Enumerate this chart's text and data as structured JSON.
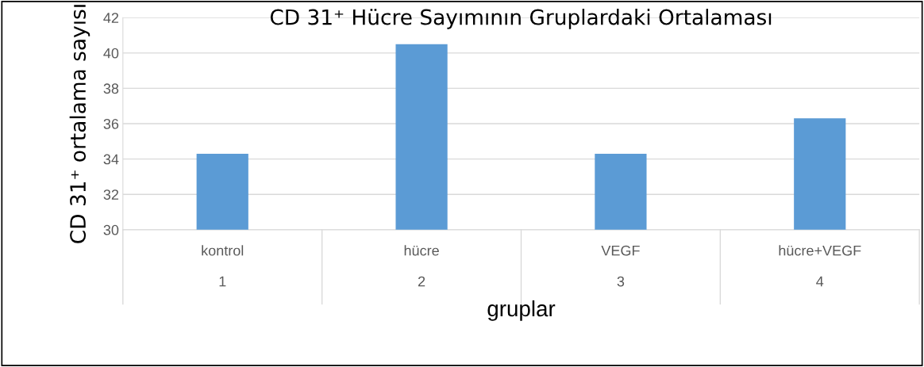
{
  "chart_data": {
    "type": "bar",
    "title": "CD 31⁺ Hücre Sayımının Gruplardaki Ortalaması",
    "xlabel": "gruplar",
    "ylabel": "CD 31⁺ ortalama sayısı",
    "categories": [
      "kontrol\n\n1",
      "hücre\n\n2",
      "VEGF\n\n3",
      "hücre+VEGF\n\n4"
    ],
    "values": [
      34.3,
      40.5,
      34.3,
      36.3
    ],
    "color": "#5b9bd5",
    "ylim": [
      30,
      42
    ],
    "yticks": [
      30,
      32,
      34,
      36,
      38,
      40,
      42
    ],
    "grid": "y"
  }
}
